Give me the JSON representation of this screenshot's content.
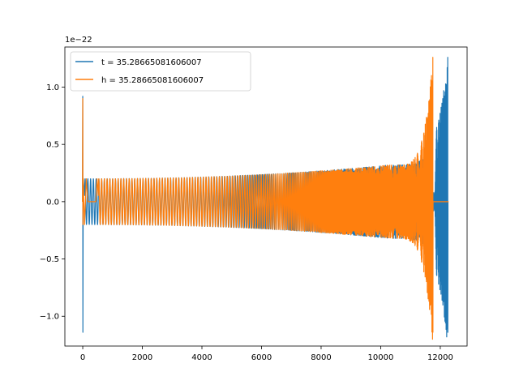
{
  "chart_data": {
    "type": "line",
    "title": "",
    "xlabel": "",
    "ylabel": "",
    "y_offset_label": "1e−22",
    "xlim": [
      -600,
      12900
    ],
    "ylim": [
      -1.26,
      1.35
    ],
    "x_ticks": [
      0,
      2000,
      4000,
      6000,
      8000,
      10000,
      12000
    ],
    "x_tick_labels": [
      "0",
      "2000",
      "4000",
      "6000",
      "8000",
      "10000",
      "12000"
    ],
    "y_ticks": [
      -1.0,
      -0.5,
      0.0,
      0.5,
      1.0
    ],
    "y_tick_labels": [
      "−1.0",
      "−0.5",
      "0.0",
      "0.5",
      "1.0"
    ],
    "grid": false,
    "legend_position": "top-left",
    "series": [
      {
        "name": "t = 35.28665081606007",
        "color": "#1f77b4",
        "start_spike": {
          "x": 0,
          "min": -1.14,
          "max": 0.92
        },
        "envelope_start": 0.2,
        "envelope_mid_x": 10300,
        "envelope_mid": 0.32,
        "x_end_oscillation": 12250,
        "peak": {
          "x": 12250,
          "min": -1.14,
          "max": 1.26
        },
        "x_end": 12250
      },
      {
        "name": "h = 35.28665081606007",
        "color": "#ff7f0e",
        "start_spike": {
          "x": 0,
          "min": -0.2,
          "max": 0.9
        },
        "envelope_start": 0.2,
        "envelope_mid_x": 10300,
        "envelope_mid": 0.32,
        "x_end_oscillation": 11750,
        "peak": {
          "x": 11750,
          "min": -1.14,
          "max": 1.26
        },
        "flat_tail_end": 12280,
        "flat_head": [
          0,
          520
        ]
      }
    ]
  }
}
